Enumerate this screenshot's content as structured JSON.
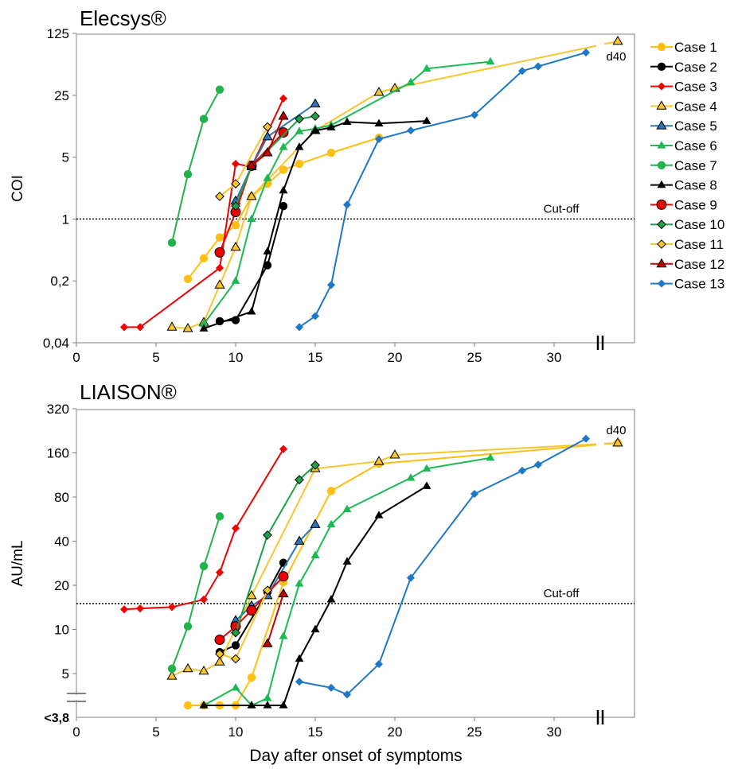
{
  "xlabel": "Day after onset of symptoms",
  "x_ticks": [
    0,
    5,
    10,
    15,
    20,
    25,
    30
  ],
  "series_meta": [
    {
      "name": "Case 1",
      "color": "#FDC010",
      "marker": "circle"
    },
    {
      "name": "Case 2",
      "color": "#000000",
      "marker": "circle"
    },
    {
      "name": "Case 3",
      "color": "#F00000",
      "marker": "diamond"
    },
    {
      "name": "Case 4",
      "color": "#F7C52E",
      "marker": "triangle-outlined"
    },
    {
      "name": "Case 5",
      "color": "#2E75B6",
      "marker": "triangle-outlined"
    },
    {
      "name": "Case 6",
      "color": "#1DB954",
      "marker": "triangle"
    },
    {
      "name": "Case 7",
      "color": "#21B24B",
      "marker": "circle"
    },
    {
      "name": "Case 8",
      "color": "#000000",
      "marker": "triangle"
    },
    {
      "name": "Case 9",
      "color": "#F00000",
      "marker": "circle-outlined"
    },
    {
      "name": "Case 10",
      "color": "#1DA049",
      "marker": "diamond-outlined"
    },
    {
      "name": "Case 11",
      "color": "#F7C52E",
      "marker": "diamond-outlined"
    },
    {
      "name": "Case 12",
      "color": "#C00000",
      "marker": "triangle-outlined"
    },
    {
      "name": "Case 13",
      "color": "#1F77C8",
      "marker": "diamond"
    }
  ],
  "chart_data": [
    {
      "type": "line",
      "title": "Elecsys®",
      "ylabel": "COI",
      "xlabel": "",
      "yscale": "log",
      "ylim": [
        0.04,
        125
      ],
      "xlim": [
        0,
        35
      ],
      "y_ticks": [
        0.04,
        0.2,
        1,
        5,
        25,
        125
      ],
      "y_tick_labels": [
        "0,04",
        "0,2",
        "1",
        "5",
        "25",
        "125"
      ],
      "cutoff": 1,
      "cutoff_label": "Cut-off",
      "axis_break_label": "d40",
      "legend_position": "right",
      "grid": false,
      "series": [
        {
          "name": "Case 1",
          "points": [
            [
              7,
              0.21
            ],
            [
              8,
              0.36
            ],
            [
              9,
              0.62
            ],
            [
              10,
              0.85
            ],
            [
              11,
              1.8
            ],
            [
              12,
              2.5
            ],
            [
              13,
              3.6
            ],
            [
              14,
              4.2
            ],
            [
              16,
              5.6
            ],
            [
              19,
              8.3
            ]
          ]
        },
        {
          "name": "Case 2",
          "points": [
            [
              9,
              0.07
            ],
            [
              10,
              0.072
            ],
            [
              12,
              0.3
            ],
            [
              13,
              1.4
            ]
          ]
        },
        {
          "name": "Case 3",
          "points": [
            [
              3,
              0.06
            ],
            [
              4,
              0.06
            ],
            [
              9,
              0.28
            ],
            [
              10,
              4.2
            ],
            [
              11,
              3.9
            ],
            [
              13,
              23
            ]
          ]
        },
        {
          "name": "Case 4",
          "points": [
            [
              6,
              0.06
            ],
            [
              7,
              0.058
            ],
            [
              8,
              0.068
            ],
            [
              9,
              0.18
            ],
            [
              10,
              0.48
            ],
            [
              11,
              1.8
            ],
            [
              15,
              10
            ],
            [
              19,
              27
            ],
            [
              20,
              30
            ],
            [
              34,
              102
            ]
          ]
        },
        {
          "name": "Case 5",
          "points": [
            [
              10,
              1.6
            ],
            [
              11,
              3.9
            ],
            [
              12,
              8.5
            ],
            [
              15,
              20
            ]
          ]
        },
        {
          "name": "Case 6",
          "points": [
            [
              8,
              0.065
            ],
            [
              10,
              0.2
            ],
            [
              11,
              1.0
            ],
            [
              12,
              2.9
            ],
            [
              13,
              6.5
            ],
            [
              14,
              9.8
            ],
            [
              15,
              10.5
            ],
            [
              16,
              11.5
            ],
            [
              21,
              35
            ],
            [
              22,
              50
            ],
            [
              26,
              60
            ]
          ]
        },
        {
          "name": "Case 7",
          "points": [
            [
              6,
              0.54
            ],
            [
              7,
              3.2
            ],
            [
              8,
              13.5
            ],
            [
              9,
              29
            ]
          ]
        },
        {
          "name": "Case 8",
          "points": [
            [
              8,
              0.058
            ],
            [
              11,
              0.09
            ],
            [
              12,
              0.43
            ],
            [
              13,
              2.1
            ],
            [
              14,
              6.5
            ],
            [
              15,
              10
            ],
            [
              16,
              10.8
            ],
            [
              17,
              12.5
            ],
            [
              19,
              12
            ],
            [
              22,
              12.8
            ]
          ]
        },
        {
          "name": "Case 9",
          "points": [
            [
              9,
              0.42
            ],
            [
              10,
              1.2
            ],
            [
              11,
              4
            ],
            [
              13,
              9.5
            ]
          ]
        },
        {
          "name": "Case 10",
          "points": [
            [
              10,
              1.4
            ],
            [
              11,
              3.9
            ],
            [
              14,
              13.5
            ],
            [
              15,
              14.5
            ]
          ]
        },
        {
          "name": "Case 11",
          "points": [
            [
              9,
              1.8
            ],
            [
              10,
              2.5
            ],
            [
              12,
              11
            ]
          ]
        },
        {
          "name": "Case 12",
          "points": [
            [
              11,
              4
            ],
            [
              12,
              5.6
            ],
            [
              13,
              14.5
            ]
          ]
        },
        {
          "name": "Case 13",
          "points": [
            [
              14,
              0.06
            ],
            [
              15,
              0.08
            ],
            [
              16,
              0.18
            ],
            [
              17,
              1.45
            ],
            [
              19,
              8
            ],
            [
              21,
              10
            ],
            [
              25,
              15
            ],
            [
              28,
              47
            ],
            [
              29,
              53
            ],
            [
              32,
              76
            ]
          ]
        }
      ]
    },
    {
      "type": "line",
      "title": "LIAISON®",
      "ylabel": "AU/mL",
      "xlabel": "Day after onset of symptoms",
      "yscale": "log",
      "ylim": [
        2.5,
        320
      ],
      "xlim": [
        0,
        35
      ],
      "y_ticks": [
        5,
        10,
        20,
        40,
        80,
        160,
        320
      ],
      "y_tick_labels": [
        "5",
        "10",
        "20",
        "40",
        "80",
        "160",
        "320"
      ],
      "below_range_label": "<3,8",
      "cutoff": 15,
      "cutoff_label": "Cut-off",
      "axis_break_label": "d40",
      "legend_position": "none",
      "grid": false,
      "series": [
        {
          "name": "Case 1",
          "points": [
            [
              7,
              "<3,8"
            ],
            [
              8,
              "<3,8"
            ],
            [
              9,
              "<3,8"
            ],
            [
              10,
              "<3,8"
            ],
            [
              11,
              4.7
            ],
            [
              13,
              21
            ],
            [
              16,
              88
            ],
            [
              19,
              135
            ],
            [
              34,
              187
            ]
          ]
        },
        {
          "name": "Case 2",
          "points": [
            [
              9,
              7
            ],
            [
              10,
              7.8
            ],
            [
              12,
              18
            ],
            [
              13,
              28.5
            ]
          ]
        },
        {
          "name": "Case 3",
          "points": [
            [
              3,
              13.7
            ],
            [
              4,
              13.9
            ],
            [
              6,
              14.2
            ],
            [
              8,
              16
            ],
            [
              9,
              24.5
            ],
            [
              10,
              49
            ],
            [
              13,
              170
            ]
          ]
        },
        {
          "name": "Case 4",
          "points": [
            [
              6,
              4.8
            ],
            [
              7,
              5.4
            ],
            [
              8,
              5.2
            ],
            [
              9,
              6
            ],
            [
              11,
              17
            ],
            [
              15,
              125
            ],
            [
              19,
              140
            ],
            [
              20,
              155
            ],
            [
              34,
              187
            ]
          ]
        },
        {
          "name": "Case 5",
          "points": [
            [
              10,
              11.5
            ],
            [
              11,
              14.5
            ],
            [
              12,
              17
            ],
            [
              14,
              40
            ],
            [
              15,
              52
            ]
          ]
        },
        {
          "name": "Case 6",
          "points": [
            [
              8,
              "<3,8"
            ],
            [
              10,
              4
            ],
            [
              11,
              "<3,8"
            ],
            [
              12,
              3.4
            ],
            [
              13,
              9
            ],
            [
              14,
              20.5
            ],
            [
              15,
              32
            ],
            [
              16,
              52
            ],
            [
              17,
              66
            ],
            [
              21,
              108
            ],
            [
              22,
              125
            ],
            [
              26,
              148
            ]
          ]
        },
        {
          "name": "Case 7",
          "points": [
            [
              6,
              5.4
            ],
            [
              7,
              10.5
            ],
            [
              8,
              27
            ],
            [
              9,
              59
            ]
          ]
        },
        {
          "name": "Case 8",
          "points": [
            [
              8,
              "<3,8"
            ],
            [
              11,
              "<3,8"
            ],
            [
              12,
              "<3,8"
            ],
            [
              13,
              "<3,8"
            ],
            [
              14,
              6.3
            ],
            [
              15,
              10
            ],
            [
              16,
              16
            ],
            [
              17,
              29
            ],
            [
              19,
              60
            ],
            [
              22,
              95
            ]
          ]
        },
        {
          "name": "Case 9",
          "points": [
            [
              9,
              8.5
            ],
            [
              10,
              10.5
            ],
            [
              11,
              13.5
            ],
            [
              13,
              23
            ]
          ]
        },
        {
          "name": "Case 10",
          "points": [
            [
              10,
              9.5
            ],
            [
              12,
              44
            ],
            [
              14,
              105
            ],
            [
              15,
              132
            ]
          ]
        },
        {
          "name": "Case 11",
          "points": [
            [
              9,
              6.8
            ],
            [
              10,
              6.3
            ],
            [
              12,
              18.5
            ]
          ]
        },
        {
          "name": "Case 12",
          "points": [
            [
              12,
              8
            ],
            [
              13,
              17.5
            ]
          ]
        },
        {
          "name": "Case 13",
          "points": [
            [
              14,
              4.4
            ],
            [
              16,
              4
            ],
            [
              17,
              3.6
            ],
            [
              19,
              5.8
            ],
            [
              21,
              22.5
            ],
            [
              25,
              84
            ],
            [
              28,
              121
            ],
            [
              29,
              133
            ],
            [
              32,
              200
            ]
          ]
        }
      ]
    }
  ]
}
